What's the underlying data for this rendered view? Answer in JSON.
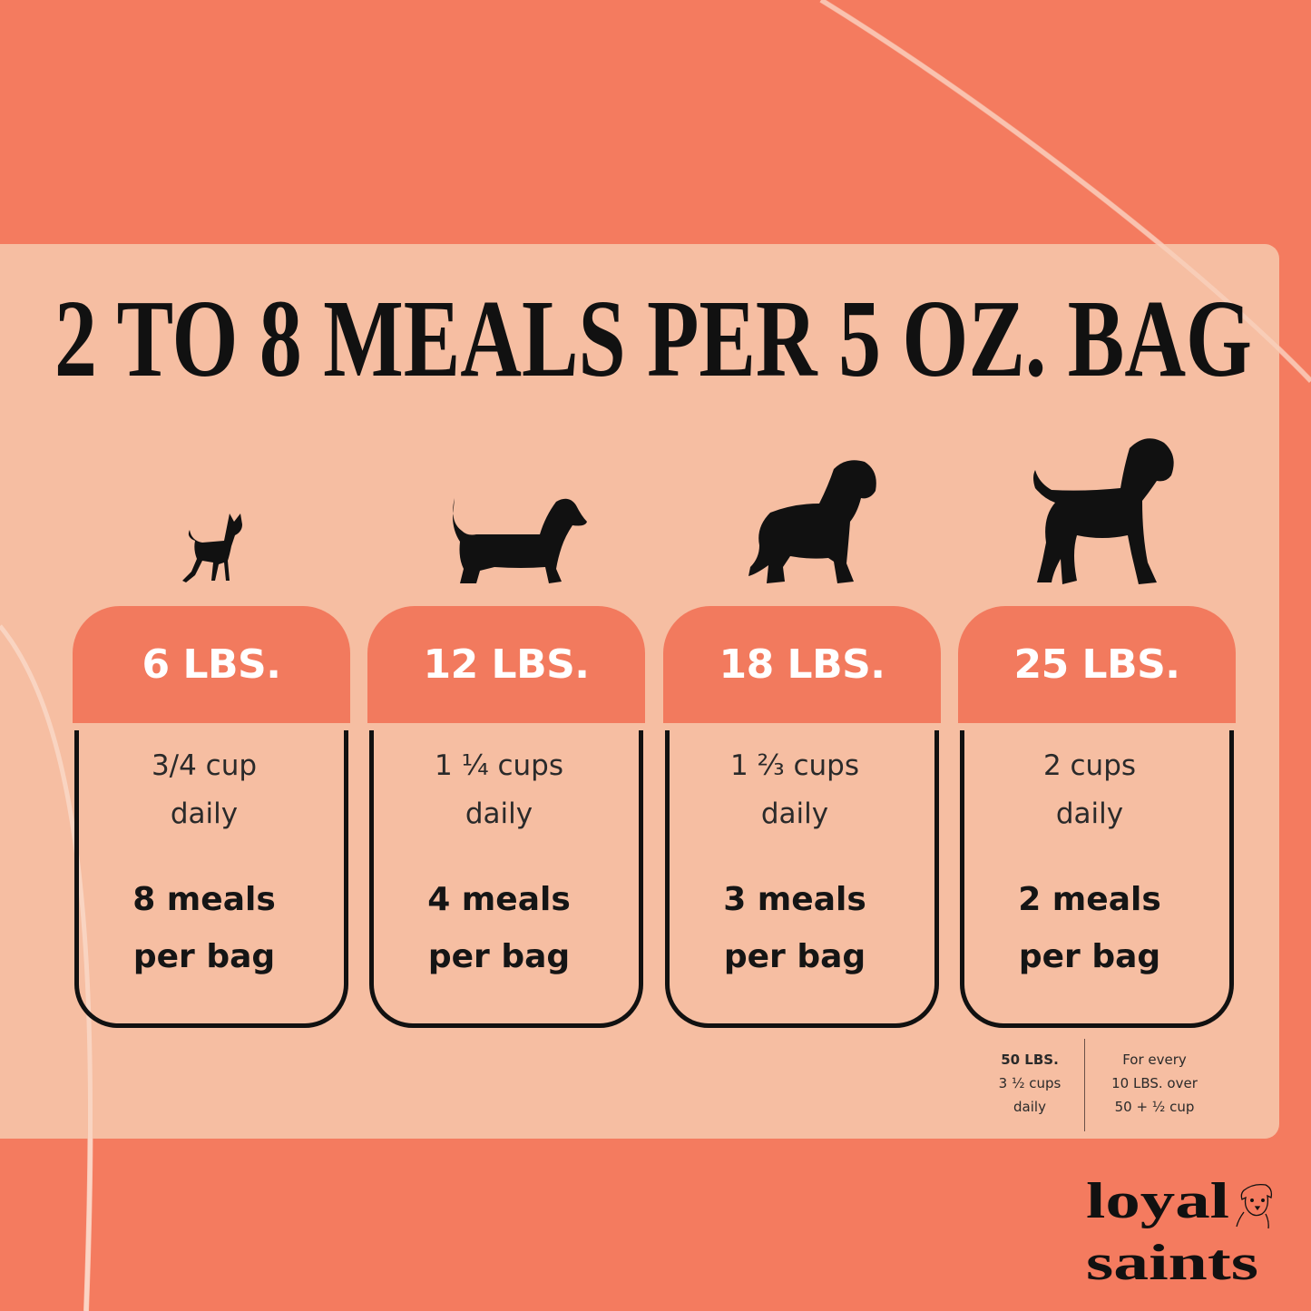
{
  "title": "2 TO 8 MEALS PER 5 OZ. BAG",
  "colors": {
    "background": "#F47B5F",
    "panel": "#F6BEA2",
    "header": "#F27A5E",
    "text": "#111111"
  },
  "cards": [
    {
      "weight": "6 LBS.",
      "cups_line1": "3/4 cup",
      "cups_line2": "daily",
      "meals_line1": "8 meals",
      "meals_line2": "per bag",
      "icon": "chihuahua-silhouette-icon"
    },
    {
      "weight": "12 LBS.",
      "cups_line1": "1 ¼ cups",
      "cups_line2": "daily",
      "meals_line1": "4 meals",
      "meals_line2": "per bag",
      "icon": "dachshund-silhouette-icon"
    },
    {
      "weight": "18 LBS.",
      "cups_line1": "1 ⅔ cups",
      "cups_line2": "daily",
      "meals_line1": "3 meals",
      "meals_line2": "per bag",
      "icon": "spaniel-silhouette-icon"
    },
    {
      "weight": "25 LBS.",
      "cups_line1": "2 cups",
      "cups_line2": "daily",
      "meals_line1": "2 meals",
      "meals_line2": "per bag",
      "icon": "poodle-silhouette-icon"
    }
  ],
  "footnote": {
    "left": {
      "weight": "50 LBS.",
      "line2": "3 ½ cups",
      "line3": "daily"
    },
    "right": {
      "line1": "For every",
      "line2": "10 LBS. over",
      "line3": "50 + ½ cup"
    }
  },
  "logo": {
    "line1": "loyal",
    "line2": "saints"
  }
}
